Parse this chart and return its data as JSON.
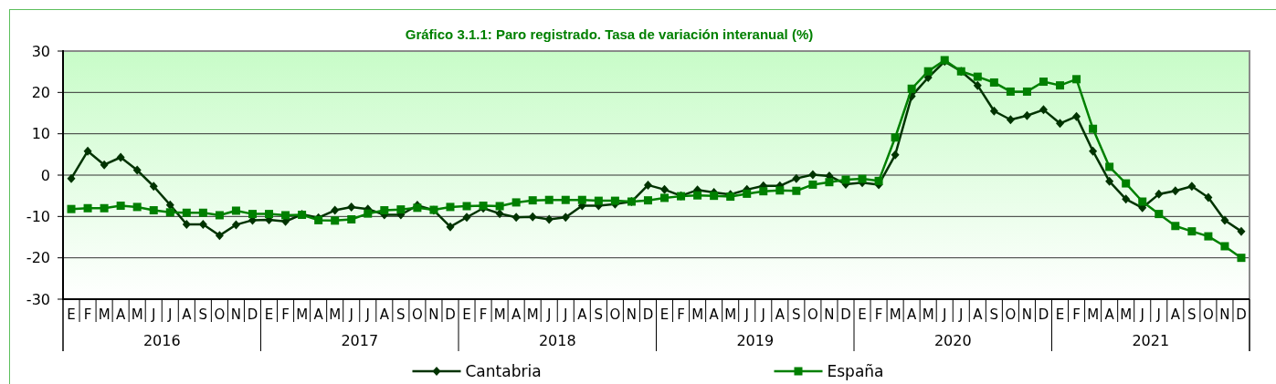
{
  "chart_data": {
    "type": "line",
    "title": "Gráfico 3.1.1: Paro registrado. Tasa de variación interanual (%)",
    "categories": [
      "E",
      "F",
      "M",
      "A",
      "M",
      "J",
      "J",
      "A",
      "S",
      "O",
      "N",
      "D",
      "E",
      "F",
      "M",
      "A",
      "M",
      "J",
      "J",
      "A",
      "S",
      "O",
      "N",
      "D",
      "E",
      "F",
      "M",
      "A",
      "M",
      "J",
      "J",
      "A",
      "S",
      "O",
      "N",
      "D",
      "E",
      "F",
      "M",
      "A",
      "M",
      "J",
      "J",
      "A",
      "S",
      "O",
      "N",
      "D",
      "E",
      "F",
      "M",
      "A",
      "M",
      "J",
      "J",
      "A",
      "S",
      "O",
      "N",
      "D",
      "E",
      "F",
      "M",
      "A",
      "M",
      "J",
      "J",
      "A",
      "S",
      "O",
      "N",
      "D"
    ],
    "annotations": [
      "2016",
      "2017",
      "2018",
      "2019",
      "2020",
      "2021"
    ],
    "series": [
      {
        "name": "Cantabria",
        "color": "#003300",
        "marker": "diamond",
        "values": [
          -0.8,
          5.8,
          2.5,
          4.3,
          1.2,
          -2.7,
          -7.2,
          -11.9,
          -11.9,
          -14.6,
          -12.0,
          -10.9,
          -10.8,
          -11.2,
          -9.5,
          -10.3,
          -8.5,
          -7.7,
          -8.2,
          -9.6,
          -9.6,
          -7.3,
          -8.5,
          -12.5,
          -10.2,
          -8.0,
          -9.3,
          -10.2,
          -10.1,
          -10.7,
          -10.2,
          -7.4,
          -7.4,
          -7.0,
          -6.4,
          -2.4,
          -3.5,
          -5.0,
          -3.6,
          -4.2,
          -4.7,
          -3.5,
          -2.6,
          -2.6,
          -0.8,
          0.1,
          -0.2,
          -2.2,
          -1.8,
          -2.3,
          4.9,
          19.1,
          23.6,
          27.5,
          25.1,
          21.7,
          15.5,
          13.4,
          14.4,
          15.8,
          12.5,
          14.2,
          5.8,
          -1.5,
          -5.8,
          -7.9,
          -4.6,
          -3.8,
          -2.7,
          -5.4,
          -10.9,
          -13.6
        ]
      },
      {
        "name": "España",
        "color": "#008000",
        "marker": "square",
        "values": [
          -8.2,
          -8.0,
          -8.0,
          -7.4,
          -7.7,
          -8.5,
          -9.0,
          -9.1,
          -9.1,
          -9.7,
          -8.6,
          -9.4,
          -9.4,
          -9.7,
          -9.6,
          -10.9,
          -11.0,
          -10.7,
          -9.3,
          -8.5,
          -8.3,
          -7.9,
          -8.4,
          -7.7,
          -7.5,
          -7.4,
          -7.5,
          -6.6,
          -6.1,
          -6.0,
          -6.0,
          -6.0,
          -6.2,
          -6.2,
          -6.4,
          -6.1,
          -5.5,
          -5.1,
          -4.9,
          -5.0,
          -5.2,
          -4.5,
          -3.9,
          -3.7,
          -3.8,
          -2.3,
          -1.7,
          -1.1,
          -0.9,
          -1.4,
          9.1,
          20.9,
          25.1,
          27.8,
          25.1,
          23.8,
          22.4,
          20.2,
          20.2,
          22.6,
          21.7,
          23.2,
          11.2,
          2.0,
          -2.0,
          -6.4,
          -9.4,
          -12.3,
          -13.6,
          -14.8,
          -17.2,
          -20.0
        ]
      }
    ],
    "ylim": [
      -30,
      30
    ],
    "yticks": [
      -30,
      -20,
      -10,
      0,
      10,
      20,
      30
    ],
    "grid": "y",
    "legend": "bottom",
    "line_style": "solid"
  }
}
